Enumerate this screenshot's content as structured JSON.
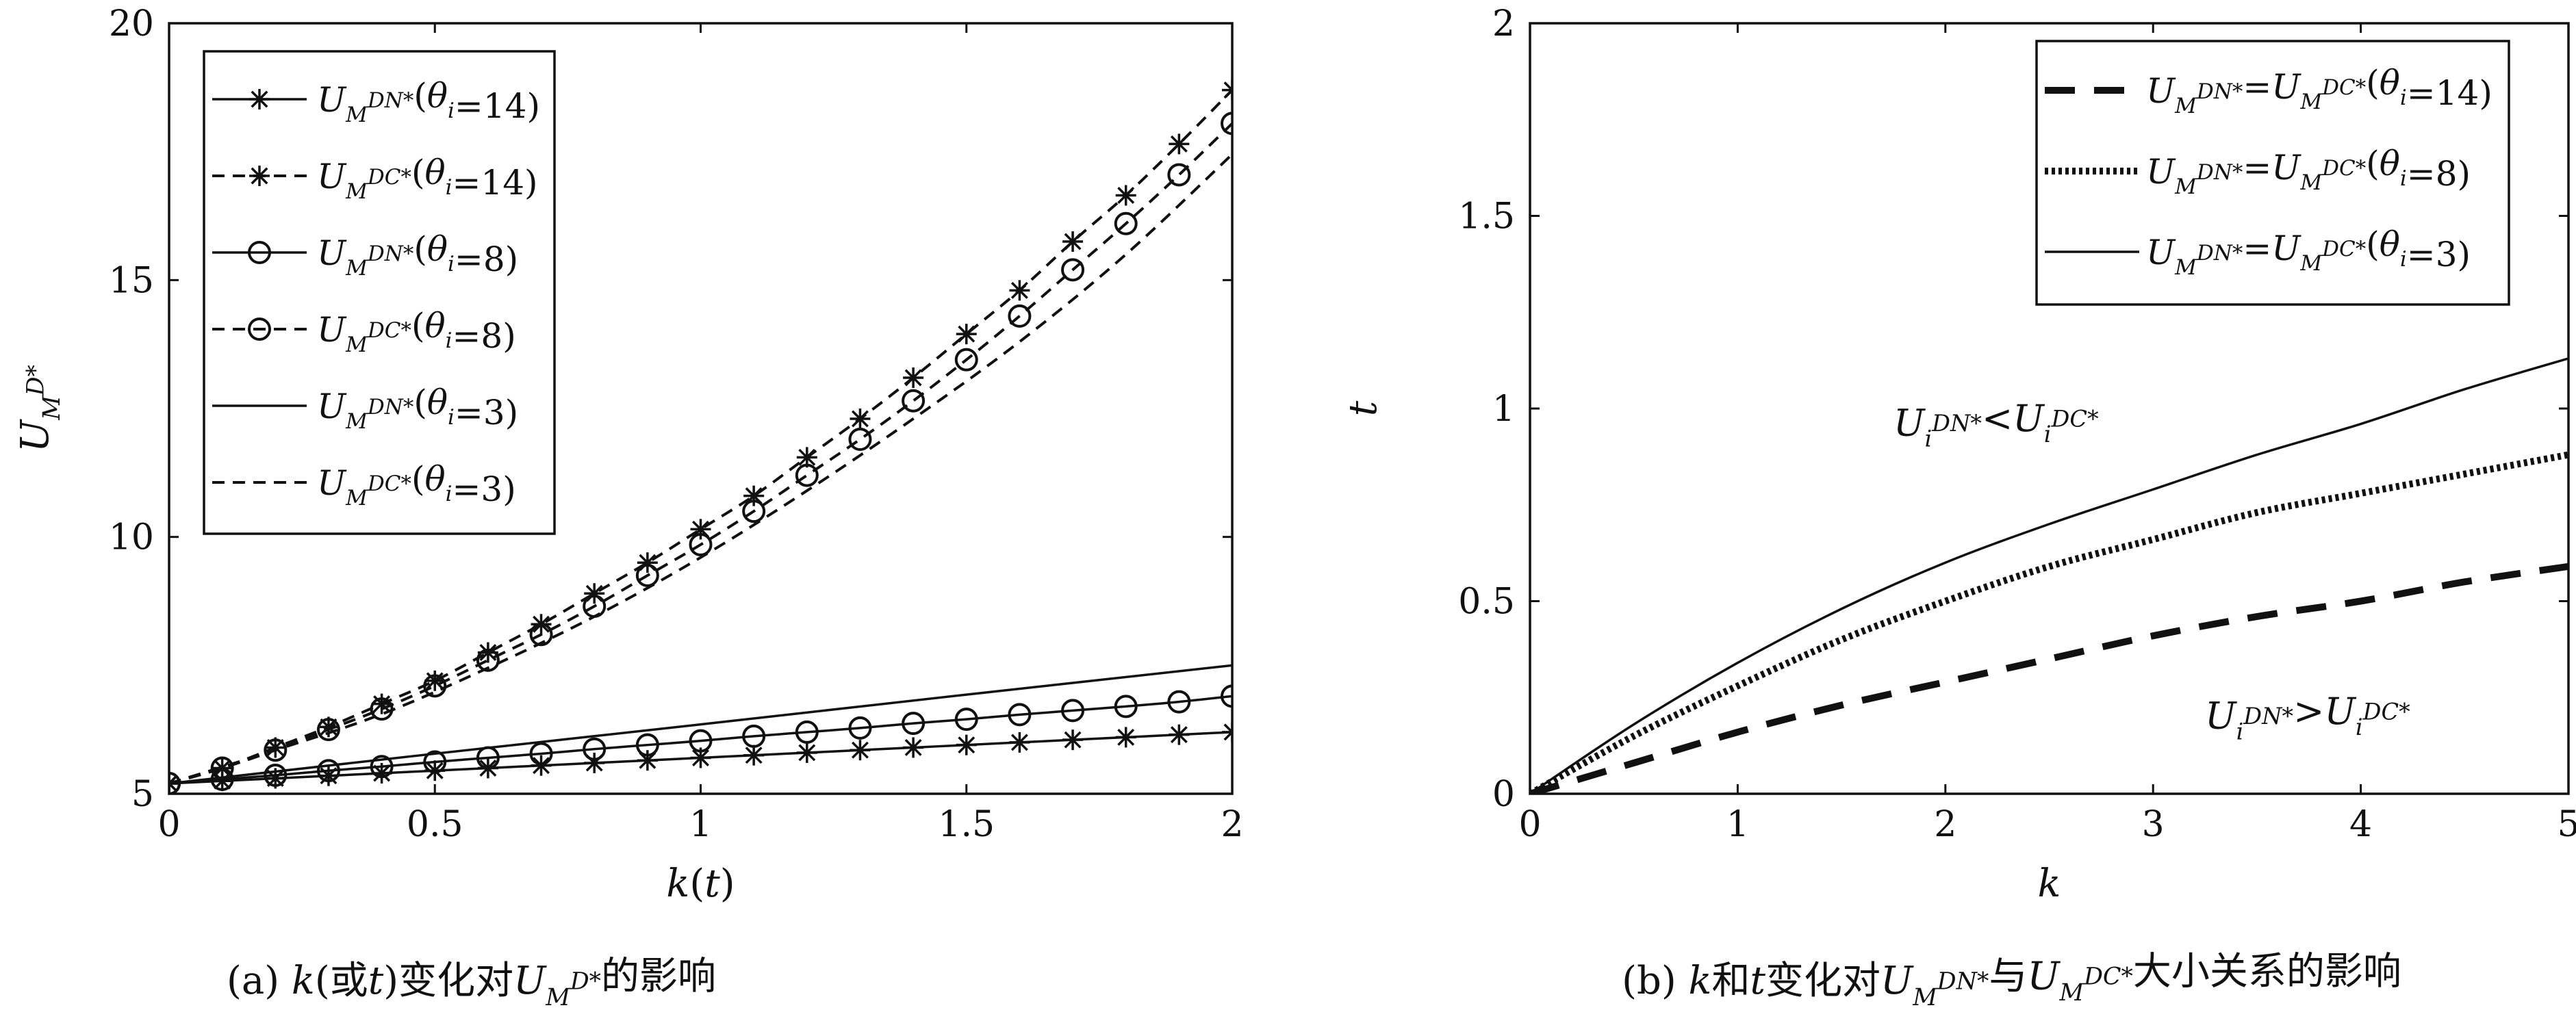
{
  "chart_data": [
    {
      "type": "line",
      "xlabel": "k(t)",
      "ylabel": "U_M^{D*}",
      "caption": "(a) k(或t)变化对U_M^{D*}的影响",
      "xlim": [
        0,
        2
      ],
      "ylim": [
        5,
        20
      ],
      "xticks": [
        0,
        0.5,
        1,
        1.5,
        2
      ],
      "xtick_labels": [
        "0",
        "0.5",
        "1",
        "1.5",
        "2"
      ],
      "yticks": [
        5,
        10,
        15,
        20
      ],
      "ytick_labels": [
        "5",
        "10",
        "15",
        "20"
      ],
      "legend_position": "top-left",
      "series": [
        {
          "name": "U_M^{DN*}(θ_i=14)",
          "line": "solid",
          "marker": "star",
          "color": "#111111",
          "x": [
            0,
            0.1,
            0.2,
            0.3,
            0.4,
            0.5,
            0.6,
            0.7,
            0.8,
            0.9,
            1.0,
            1.1,
            1.2,
            1.3,
            1.4,
            1.5,
            1.6,
            1.7,
            1.8,
            1.9,
            2.0
          ],
          "y": [
            5.2,
            5.25,
            5.3,
            5.35,
            5.4,
            5.45,
            5.5,
            5.55,
            5.6,
            5.65,
            5.7,
            5.75,
            5.8,
            5.85,
            5.9,
            5.95,
            6.0,
            6.05,
            6.1,
            6.15,
            6.2
          ]
        },
        {
          "name": "U_M^{DC*}(θ_i=14)",
          "line": "dashed",
          "marker": "star",
          "color": "#111111",
          "x": [
            0,
            0.1,
            0.2,
            0.3,
            0.4,
            0.5,
            0.6,
            0.7,
            0.8,
            0.9,
            1.0,
            1.1,
            1.2,
            1.3,
            1.4,
            1.5,
            1.6,
            1.7,
            1.8,
            1.9,
            2.0
          ],
          "y": [
            5.2,
            5.5,
            5.9,
            6.3,
            6.75,
            7.2,
            7.75,
            8.3,
            8.9,
            9.5,
            10.15,
            10.8,
            11.55,
            12.3,
            13.1,
            13.95,
            14.8,
            15.75,
            16.65,
            17.65,
            18.7
          ]
        },
        {
          "name": "U_M^{DN*}(θ_i=8)",
          "line": "solid",
          "marker": "circle",
          "color": "#111111",
          "x": [
            0,
            0.1,
            0.2,
            0.3,
            0.4,
            0.5,
            0.6,
            0.7,
            0.8,
            0.9,
            1.0,
            1.1,
            1.2,
            1.3,
            1.4,
            1.5,
            1.6,
            1.7,
            1.8,
            1.9,
            2.0
          ],
          "y": [
            5.2,
            5.28,
            5.36,
            5.45,
            5.53,
            5.62,
            5.7,
            5.78,
            5.87,
            5.95,
            6.03,
            6.12,
            6.2,
            6.28,
            6.37,
            6.45,
            6.54,
            6.62,
            6.7,
            6.79,
            6.9
          ]
        },
        {
          "name": "U_M^{DC*}(θ_i=8)",
          "line": "dashed",
          "marker": "circle",
          "color": "#111111",
          "x": [
            0,
            0.1,
            0.2,
            0.3,
            0.4,
            0.5,
            0.6,
            0.7,
            0.8,
            0.9,
            1.0,
            1.1,
            1.2,
            1.3,
            1.4,
            1.5,
            1.6,
            1.7,
            1.8,
            1.9,
            2.0
          ],
          "y": [
            5.2,
            5.5,
            5.85,
            6.25,
            6.65,
            7.1,
            7.6,
            8.1,
            8.65,
            9.25,
            9.85,
            10.5,
            11.2,
            11.9,
            12.65,
            13.45,
            14.3,
            15.2,
            16.1,
            17.05,
            18.05
          ]
        },
        {
          "name": "U_M^{DN*}(θ_i=3)",
          "line": "solid",
          "marker": "none",
          "color": "#111111",
          "x": [
            0,
            0.5,
            1.0,
            1.5,
            2.0
          ],
          "y": [
            5.2,
            5.78,
            6.35,
            6.93,
            7.5
          ]
        },
        {
          "name": "U_M^{DC*}(θ_i=3)",
          "line": "dashed",
          "marker": "none",
          "color": "#111111",
          "x": [
            0,
            0.2,
            0.4,
            0.6,
            0.8,
            1.0,
            1.2,
            1.4,
            1.6,
            1.8,
            2.0
          ],
          "y": [
            5.2,
            5.85,
            6.55,
            7.45,
            8.45,
            9.6,
            10.9,
            12.3,
            13.8,
            15.5,
            17.45
          ]
        }
      ]
    },
    {
      "type": "line",
      "xlabel": "k",
      "ylabel": "t",
      "caption": "(b) k和t变化对U_M^{DN*}与U_M^{DC*}大小关系的影响",
      "xlim": [
        0,
        5
      ],
      "ylim": [
        0,
        2
      ],
      "xticks": [
        0,
        1,
        2,
        3,
        4,
        5
      ],
      "xtick_labels": [
        "0",
        "1",
        "2",
        "3",
        "4",
        "5"
      ],
      "yticks": [
        0,
        0.5,
        1,
        1.5,
        2
      ],
      "ytick_labels": [
        "0",
        "0.5",
        "1",
        "1.5",
        "2"
      ],
      "legend_position": "top-right",
      "annotations": [
        {
          "text": "U_i^{DN*}<U_i^{DC*}",
          "x": 1.75,
          "y": 0.93
        },
        {
          "text": "U_i^{DN*}>U_i^{DC*}",
          "x": 3.25,
          "y": 0.17
        }
      ],
      "series": [
        {
          "name": "U_M^{DN*}=U_M^{DC*}(θ_i=14)",
          "line": "dashed-thick",
          "color": "#111111",
          "x": [
            0,
            0.5,
            1,
            1.5,
            2,
            2.5,
            3,
            3.5,
            4,
            4.5,
            5
          ],
          "y": [
            0,
            0.08,
            0.16,
            0.23,
            0.29,
            0.35,
            0.41,
            0.46,
            0.5,
            0.55,
            0.59
          ]
        },
        {
          "name": "U_M^{DN*}=U_M^{DC*}(θ_i=8)",
          "line": "dotted-thick",
          "color": "#111111",
          "x": [
            0,
            0.5,
            1,
            1.5,
            2,
            2.5,
            3,
            3.5,
            4,
            4.5,
            5
          ],
          "y": [
            0,
            0.15,
            0.28,
            0.4,
            0.5,
            0.59,
            0.66,
            0.73,
            0.78,
            0.83,
            0.88
          ]
        },
        {
          "name": "U_M^{DN*}=U_M^{DC*}(θ_i=3)",
          "line": "solid",
          "color": "#111111",
          "x": [
            0,
            0.5,
            1,
            1.5,
            2,
            2.5,
            3,
            3.5,
            4,
            4.5,
            5
          ],
          "y": [
            0,
            0.18,
            0.34,
            0.48,
            0.6,
            0.7,
            0.79,
            0.88,
            0.96,
            1.05,
            1.13
          ]
        }
      ]
    }
  ]
}
